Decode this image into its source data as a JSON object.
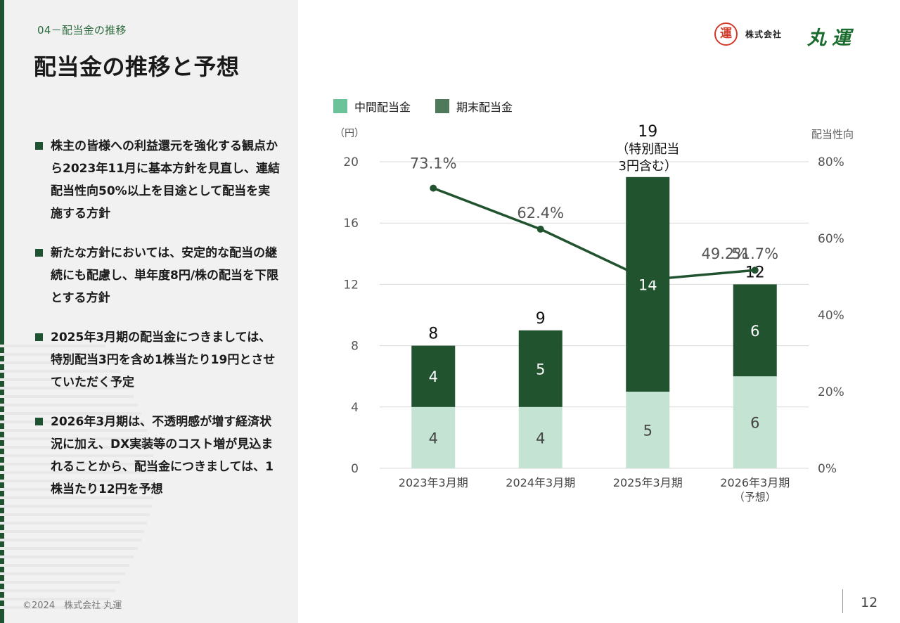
{
  "header": {
    "section_label": "04－配当金の推移",
    "title": "配当金の推移と予想"
  },
  "logo": {
    "mark": "運",
    "company_small": "株式会社",
    "company_big": "丸運"
  },
  "bullets": [
    "株主の皆様への利益還元を強化する観点から2023年11月に基本方針を見直し、連結配当性向50%以上を目途として配当を実施する方針",
    "新たな方針においては、安定的な配当の継続にも配慮し、単年度8円/株の配当を下限とする方針",
    "2025年3月期の配当金につきましては、特別配当3円を含め1株当たり19円とさせていただく予定",
    "2026年3月期は、不透明感が増す経済状況に加え、DX実装等のコスト増が見込まれることから、配当金につきましては、1株当たり12円を予想"
  ],
  "footer": {
    "copyright": "©2024　株式会社 丸運",
    "page_number": "12"
  },
  "chart_data": {
    "type": "bar",
    "stacked": true,
    "categories": [
      "2023年3月期",
      "2024年3月期",
      "2025年3月期",
      "2026年3月期"
    ],
    "category_sublabels": [
      "",
      "",
      "",
      "（予想）"
    ],
    "series": [
      {
        "name": "中間配当金",
        "values": [
          4,
          4,
          5,
          6
        ],
        "color": "#c5e3d3",
        "legend_color": "#6cc39a"
      },
      {
        "name": "期末配当金",
        "values": [
          4,
          5,
          14,
          6
        ],
        "color": "#21532f",
        "legend_color": "#4e7a5b"
      }
    ],
    "totals": [
      8,
      9,
      19,
      12
    ],
    "total_notes": [
      "",
      "",
      "（特別配当\n3円含む）",
      ""
    ],
    "line": {
      "values": [
        73.1,
        62.4,
        49.2,
        51.7
      ],
      "labels": [
        "73.1%",
        "62.4%",
        "49.2%",
        "51.7%"
      ],
      "color": "#21532f"
    },
    "y_left": {
      "unit_label": "（円）",
      "ticks": [
        0,
        4,
        8,
        12,
        16,
        20
      ],
      "range": [
        0,
        20
      ]
    },
    "y_right": {
      "label": "配当性向",
      "ticks": [
        "0%",
        "20%",
        "40%",
        "60%",
        "80%"
      ],
      "range": [
        0,
        80
      ]
    },
    "grid": true,
    "legend_position": "top-left"
  }
}
